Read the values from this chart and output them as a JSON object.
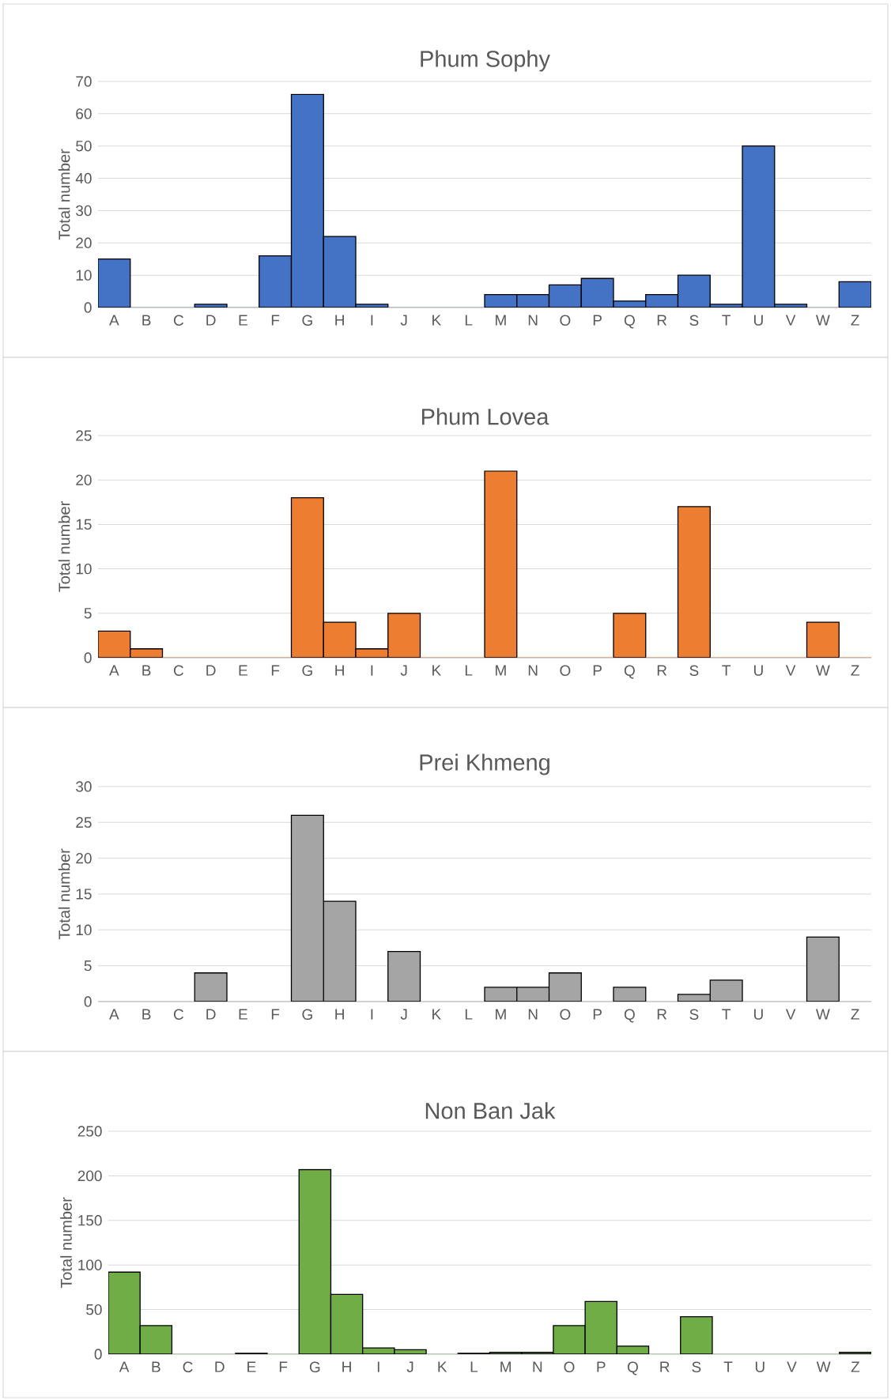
{
  "chart_data": [
    {
      "type": "bar",
      "title": "Phum Sophy",
      "ylabel": "Total number",
      "categories": [
        "A",
        "B",
        "C",
        "D",
        "E",
        "F",
        "G",
        "H",
        "I",
        "J",
        "K",
        "L",
        "M",
        "N",
        "O",
        "P",
        "Q",
        "R",
        "S",
        "T",
        "U",
        "V",
        "W",
        "Z"
      ],
      "values": [
        15,
        0,
        0,
        1,
        0,
        16,
        66,
        22,
        1,
        0,
        0,
        0,
        4,
        4,
        7,
        9,
        2,
        4,
        10,
        1,
        50,
        1,
        0,
        8
      ],
      "color": "#4472c4",
      "ylim": [
        0,
        70
      ],
      "yticks": [
        0,
        10,
        20,
        30,
        40,
        50,
        60,
        70
      ],
      "grid": "y"
    },
    {
      "type": "bar",
      "title": "Phum Lovea",
      "ylabel": "Total number",
      "categories": [
        "A",
        "B",
        "C",
        "D",
        "E",
        "F",
        "G",
        "H",
        "I",
        "J",
        "K",
        "L",
        "M",
        "N",
        "O",
        "P",
        "Q",
        "R",
        "S",
        "T",
        "U",
        "V",
        "W",
        "Z"
      ],
      "values": [
        3,
        1,
        0,
        0,
        0,
        0,
        18,
        4,
        1,
        5,
        0,
        0,
        21,
        0,
        0,
        0,
        5,
        0,
        17,
        0,
        0,
        0,
        4,
        0
      ],
      "color": "#ed7d31",
      "ylim": [
        0,
        25
      ],
      "yticks": [
        0,
        5,
        10,
        15,
        20,
        25
      ],
      "grid": "y"
    },
    {
      "type": "bar",
      "title": "Prei Khmeng",
      "ylabel": "Total number",
      "categories": [
        "A",
        "B",
        "C",
        "D",
        "E",
        "F",
        "G",
        "H",
        "I",
        "J",
        "K",
        "L",
        "M",
        "N",
        "O",
        "P",
        "Q",
        "R",
        "S",
        "T",
        "U",
        "V",
        "W",
        "Z"
      ],
      "values": [
        0,
        0,
        0,
        4,
        0,
        0,
        26,
        14,
        0,
        7,
        0,
        0,
        2,
        2,
        4,
        0,
        2,
        0,
        1,
        3,
        0,
        0,
        9,
        0
      ],
      "color": "#a5a5a5",
      "ylim": [
        0,
        30
      ],
      "yticks": [
        0,
        5,
        10,
        15,
        20,
        25,
        30
      ],
      "grid": "y"
    },
    {
      "type": "bar",
      "title": "Non Ban Jak",
      "ylabel": "Total number",
      "categories": [
        "A",
        "B",
        "C",
        "D",
        "E",
        "F",
        "G",
        "H",
        "I",
        "J",
        "K",
        "L",
        "M",
        "N",
        "O",
        "P",
        "Q",
        "R",
        "S",
        "T",
        "U",
        "V",
        "W",
        "Z"
      ],
      "values": [
        92,
        32,
        0,
        0,
        1,
        0,
        207,
        67,
        7,
        5,
        0,
        1,
        2,
        2,
        32,
        59,
        9,
        0,
        42,
        0,
        0,
        0,
        0,
        2
      ],
      "color": "#70ad47",
      "ylim": [
        0,
        250
      ],
      "yticks": [
        0,
        50,
        100,
        150,
        200,
        250
      ],
      "grid": "y"
    }
  ]
}
